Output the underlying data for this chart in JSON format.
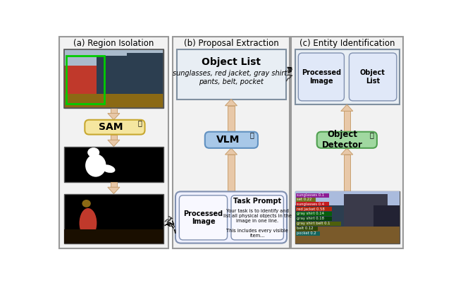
{
  "panel_a_title": "(a) Region Isolation",
  "panel_b_title": "(b) Proposal Extraction",
  "panel_c_title": "(c) Entity Identification",
  "sam_label": "SAM",
  "vlm_label": "VLM",
  "obj_detector_label": "Object\nDetector",
  "object_list_title": "Object List",
  "object_list_text": "sunglasses, red jacket, gray shirt,\npants, belt, pocket",
  "processed_image_label": "Processed\nImage",
  "task_prompt_title": "Task Prompt",
  "task_prompt_text": "Your task is to identify and\nlist all physical objects in the\nimage in one line.\n\nThis includes every visible\nitem...",
  "object_list_c_title": "Object\nList",
  "processed_image_c_label": "Processed\nImage",
  "arrow_color": "#e8c8a8",
  "arrow_edge": "#c8a070",
  "sam_box_color": "#f5e6a0",
  "sam_box_edge": "#c8a830",
  "vlm_box_color": "#a8c8e8",
  "vlm_box_edge": "#6090c0",
  "obj_det_box_color": "#a0d8a0",
  "obj_det_box_edge": "#50a050",
  "object_list_box_color": "#e8eef4",
  "object_list_box_edge": "#8090a0",
  "panel_box_color": "#f2f2f2",
  "panel_box_edge": "#999999",
  "inner_box_color": "#f8f8ff",
  "inner_box_edge": "#8090b0",
  "bg_color": "#ffffff",
  "det_labels": [
    "sunglasses 0.1",
    "set 0.22",
    "sunglasses 0.4",
    "red jacket 0.58",
    "gray shirt 0.14",
    "gray shirt 0.18",
    "gray shirt belt 0.1",
    "belt 0.12",
    "pocket 0.2"
  ],
  "det_colors": [
    "#880088",
    "#666600",
    "#cc0000",
    "#cc2200",
    "#006600",
    "#004400",
    "#556600",
    "#224400",
    "#006666"
  ]
}
